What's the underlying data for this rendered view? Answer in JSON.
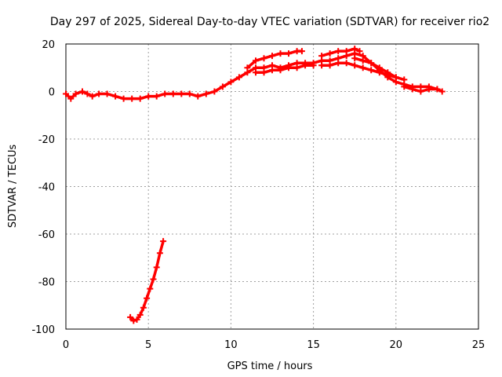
{
  "chart_data": {
    "type": "scatter",
    "title": "Day 297 of 2025, Sidereal Day-to-day VTEC variation (SDTVAR) for receiver rio2",
    "xlabel": "GPS time / hours",
    "ylabel": "SDTVAR / TECUs",
    "xlim": [
      0,
      25
    ],
    "ylim": [
      -100,
      20
    ],
    "xticks": [
      0,
      5,
      10,
      15,
      20,
      25
    ],
    "yticks": [
      -100,
      -80,
      -60,
      -40,
      -20,
      0,
      20
    ],
    "grid": true,
    "color": "#ff0000",
    "series": [
      {
        "points": [
          [
            0.0,
            -1
          ],
          [
            0.3,
            -3
          ],
          [
            0.6,
            -1
          ],
          [
            1.0,
            0
          ],
          [
            1.3,
            -1
          ],
          [
            1.6,
            -2
          ],
          [
            2.0,
            -1
          ],
          [
            2.5,
            -1
          ],
          [
            3.0,
            -2
          ],
          [
            3.5,
            -3
          ],
          [
            4.0,
            -3
          ],
          [
            4.5,
            -3
          ],
          [
            5.0,
            -2
          ],
          [
            5.5,
            -2
          ],
          [
            6.0,
            -1
          ],
          [
            6.5,
            -1
          ],
          [
            7.0,
            -1
          ],
          [
            7.5,
            -1
          ],
          [
            8.0,
            -2
          ],
          [
            8.5,
            -1
          ],
          [
            9.0,
            0
          ],
          [
            9.5,
            2
          ],
          [
            10.0,
            4
          ],
          [
            10.5,
            6
          ],
          [
            11.0,
            8
          ],
          [
            11.5,
            10
          ],
          [
            12.0,
            10
          ],
          [
            12.5,
            11
          ],
          [
            13.0,
            10
          ],
          [
            13.5,
            11
          ],
          [
            14.0,
            12
          ],
          [
            14.5,
            12
          ],
          [
            15.0,
            12
          ],
          [
            15.5,
            13
          ],
          [
            16.0,
            13
          ],
          [
            16.5,
            14
          ],
          [
            17.0,
            15
          ],
          [
            17.5,
            16
          ],
          [
            18.0,
            15
          ],
          [
            18.5,
            12
          ],
          [
            19.0,
            9
          ],
          [
            19.5,
            6
          ],
          [
            20.0,
            4
          ],
          [
            20.5,
            3
          ],
          [
            21.0,
            2
          ],
          [
            21.5,
            2
          ],
          [
            22.0,
            2
          ],
          [
            22.5,
            1
          ],
          [
            22.8,
            0
          ]
        ]
      },
      {
        "points": [
          [
            11.0,
            10
          ],
          [
            11.5,
            13
          ],
          [
            12.0,
            14
          ],
          [
            12.5,
            15
          ],
          [
            13.0,
            16
          ],
          [
            13.5,
            16
          ],
          [
            14.0,
            17
          ],
          [
            14.3,
            17
          ]
        ]
      },
      {
        "points": [
          [
            11.5,
            8
          ],
          [
            12.0,
            8
          ],
          [
            12.5,
            9
          ],
          [
            13.0,
            9
          ],
          [
            13.5,
            10
          ],
          [
            14.0,
            10
          ],
          [
            14.5,
            11
          ],
          [
            15.0,
            11
          ]
        ]
      },
      {
        "points": [
          [
            15.5,
            15
          ],
          [
            16.0,
            16
          ],
          [
            16.5,
            17
          ],
          [
            17.0,
            17
          ],
          [
            17.5,
            18
          ],
          [
            17.8,
            17
          ]
        ]
      },
      {
        "points": [
          [
            15.5,
            11
          ],
          [
            16.0,
            11
          ],
          [
            16.5,
            12
          ],
          [
            17.0,
            12
          ],
          [
            17.5,
            11
          ],
          [
            18.0,
            10
          ],
          [
            18.5,
            9
          ],
          [
            19.0,
            8
          ],
          [
            19.5,
            7
          ],
          [
            20.0,
            6
          ]
        ]
      },
      {
        "points": [
          [
            17.5,
            14
          ],
          [
            18.0,
            13
          ],
          [
            18.5,
            12
          ],
          [
            19.0,
            10
          ],
          [
            19.5,
            8
          ],
          [
            20.0,
            6
          ],
          [
            20.5,
            5
          ]
        ]
      },
      {
        "points": [
          [
            20.5,
            2
          ],
          [
            21.0,
            1
          ],
          [
            21.5,
            0
          ],
          [
            22.0,
            1
          ],
          [
            22.5,
            1
          ]
        ]
      },
      {
        "points": [
          [
            3.9,
            -95
          ],
          [
            4.1,
            -96.5
          ],
          [
            4.3,
            -96
          ],
          [
            4.5,
            -94
          ],
          [
            4.7,
            -91
          ],
          [
            4.9,
            -87
          ],
          [
            5.1,
            -83
          ],
          [
            5.3,
            -79
          ],
          [
            5.5,
            -74
          ],
          [
            5.7,
            -68
          ],
          [
            5.9,
            -63
          ]
        ]
      }
    ]
  }
}
